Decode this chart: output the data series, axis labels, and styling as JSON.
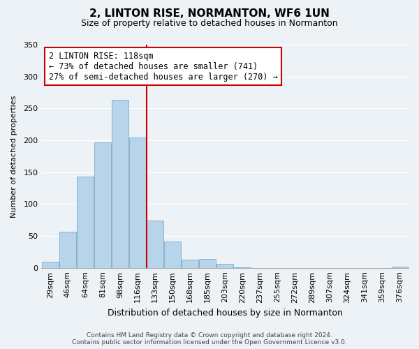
{
  "title": "2, LINTON RISE, NORMANTON, WF6 1UN",
  "subtitle": "Size of property relative to detached houses in Normanton",
  "xlabel": "Distribution of detached houses by size in Normanton",
  "ylabel": "Number of detached properties",
  "bin_labels": [
    "29sqm",
    "46sqm",
    "64sqm",
    "81sqm",
    "98sqm",
    "116sqm",
    "133sqm",
    "150sqm",
    "168sqm",
    "185sqm",
    "203sqm",
    "220sqm",
    "237sqm",
    "255sqm",
    "272sqm",
    "289sqm",
    "307sqm",
    "324sqm",
    "341sqm",
    "359sqm",
    "376sqm"
  ],
  "bar_heights": [
    10,
    57,
    143,
    197,
    263,
    204,
    74,
    41,
    13,
    14,
    6,
    1,
    0,
    0,
    0,
    0,
    0,
    0,
    0,
    0,
    2
  ],
  "bar_color": "#b8d4ea",
  "bar_edge_color": "#7aaac8",
  "property_line_x": 5.5,
  "property_line_color": "#cc0000",
  "annotation_text": "2 LINTON RISE: 118sqm\n← 73% of detached houses are smaller (741)\n27% of semi-detached houses are larger (270) →",
  "annotation_box_facecolor": "#ffffff",
  "annotation_box_edgecolor": "#cc0000",
  "ylim": [
    0,
    350
  ],
  "yticks": [
    0,
    50,
    100,
    150,
    200,
    250,
    300,
    350
  ],
  "footer_line1": "Contains HM Land Registry data © Crown copyright and database right 2024.",
  "footer_line2": "Contains public sector information licensed under the Open Government Licence v3.0.",
  "background_color": "#edf2f7",
  "title_fontsize": 11,
  "subtitle_fontsize": 9,
  "xlabel_fontsize": 9,
  "ylabel_fontsize": 8,
  "tick_fontsize": 8,
  "annotation_fontsize": 8.5,
  "footer_fontsize": 6.5
}
